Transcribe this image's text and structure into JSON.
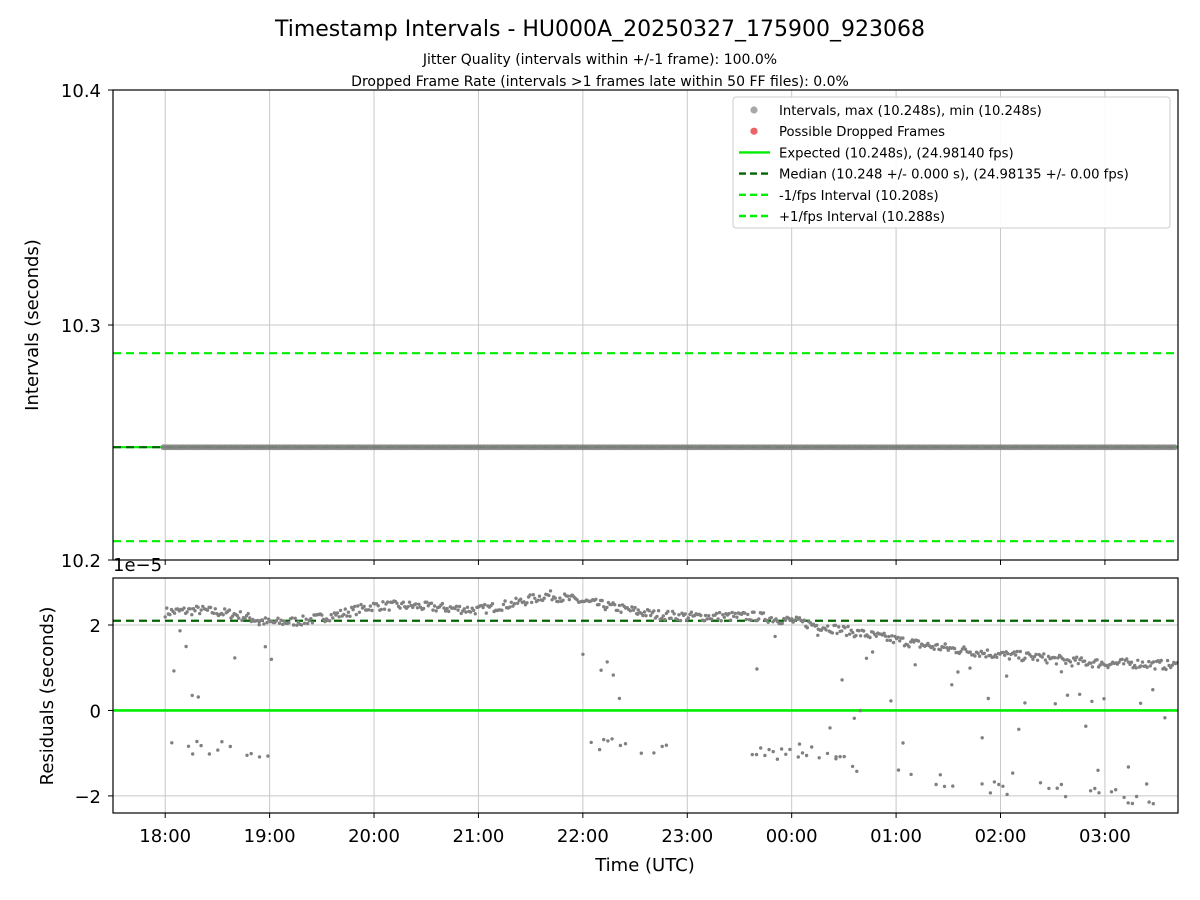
{
  "title": "Timestamp Intervals - HU000A_20250327_175900_923068",
  "subtitle_jitter": "Jitter Quality (intervals within +/-1 frame): 100.0%",
  "subtitle_dropped": "Dropped Frame Rate (intervals >1 frames late within 50 FF files): 0.0%",
  "xlabel": "Time (UTC)",
  "colors": {
    "intervals": "#808080",
    "dropped": "#e8474c",
    "expected": "#00ee00",
    "median": "#006400",
    "jitter_band": "#00ee00",
    "grid": "#c8c8c8"
  },
  "chart_data": [
    {
      "type": "scatter",
      "name": "intervals-panel",
      "ylabel": "Intervals (seconds)",
      "ylim": [
        10.2,
        10.4
      ],
      "yticks": [
        "10.2",
        "10.3",
        "10.4"
      ],
      "ytick_values": [
        10.2,
        10.3,
        10.4
      ],
      "grid": true,
      "legend_position": "upper right",
      "legend": [
        {
          "label": "Intervals, max (10.248s), min (10.248s)",
          "kind": "marker",
          "color": "#a8a8a8"
        },
        {
          "label": "Possible Dropped Frames",
          "kind": "marker",
          "color": "#e8474c"
        },
        {
          "label": "Expected (10.248s), (24.98140 fps)",
          "kind": "solid",
          "color": "#00ee00"
        },
        {
          "label": "Median (10.248 +/- 0.000 s), (24.98135 +/- 0.00 fps)",
          "kind": "dashed",
          "color": "#006400"
        },
        {
          "label": "-1/fps Interval (10.208s)",
          "kind": "dashed",
          "color": "#00ee00"
        },
        {
          "label": "+1/fps Interval (10.288s)",
          "kind": "dashed",
          "color": "#00ee00"
        }
      ],
      "expected": 10.248,
      "median": 10.248,
      "lower_bound": 10.208,
      "upper_bound": 10.288,
      "series": [
        {
          "name": "Intervals",
          "x_start": "17:59",
          "x_end": "03:42",
          "y": 10.248
        }
      ]
    },
    {
      "type": "scatter",
      "name": "residuals-panel",
      "ylabel": "Residuals (seconds)",
      "offset_label": "1e−5",
      "ylim": [
        -2.4,
        3.1
      ],
      "yticks": [
        "−2",
        "0",
        "2"
      ],
      "ytick_values": [
        -2,
        0,
        2
      ],
      "y_unit_scale": "1e-5",
      "grid": true,
      "expected_line": 0,
      "median_line": 2.1,
      "xlim": [
        "17:30",
        "03:42"
      ],
      "xticks": [
        "18:00",
        "19:00",
        "20:00",
        "21:00",
        "22:00",
        "23:00",
        "00:00",
        "01:00",
        "02:00",
        "03:00"
      ],
      "series": [
        {
          "name": "main-residual-trend",
          "points": [
            [
              "18:00",
              2.3
            ],
            [
              "18:20",
              2.35
            ],
            [
              "18:40",
              2.25
            ],
            [
              "19:00",
              2.05
            ],
            [
              "19:20",
              2.1
            ],
            [
              "19:40",
              2.25
            ],
            [
              "20:00",
              2.45
            ],
            [
              "20:20",
              2.45
            ],
            [
              "20:40",
              2.4
            ],
            [
              "21:00",
              2.35
            ],
            [
              "21:20",
              2.5
            ],
            [
              "21:40",
              2.7
            ],
            [
              "22:00",
              2.55
            ],
            [
              "22:20",
              2.4
            ],
            [
              "22:40",
              2.25
            ],
            [
              "23:00",
              2.2
            ],
            [
              "23:20",
              2.2
            ],
            [
              "23:40",
              2.2
            ],
            [
              "00:00",
              2.1
            ],
            [
              "00:20",
              1.95
            ],
            [
              "00:40",
              1.8
            ],
            [
              "01:00",
              1.65
            ],
            [
              "01:20",
              1.5
            ],
            [
              "01:40",
              1.4
            ],
            [
              "02:00",
              1.3
            ],
            [
              "02:20",
              1.25
            ],
            [
              "02:40",
              1.15
            ],
            [
              "03:00",
              1.1
            ],
            [
              "03:20",
              1.1
            ],
            [
              "03:40",
              1.05
            ]
          ]
        },
        {
          "name": "lower-residual-trend",
          "points": [
            [
              "17:59",
              -0.8
            ],
            [
              "18:10",
              -0.9
            ],
            [
              "18:40",
              -0.9
            ],
            [
              "18:55",
              -1.1
            ],
            [
              "19:00",
              -1.2
            ],
            [
              "22:00",
              -0.7
            ],
            [
              "22:20",
              -0.8
            ],
            [
              "22:40",
              -0.9
            ],
            [
              "22:50",
              -0.95
            ],
            [
              "23:10",
              -1.0
            ],
            [
              "23:40",
              -1.0
            ],
            [
              "23:50",
              -1.05
            ],
            [
              "00:00",
              -1.05
            ],
            [
              "00:20",
              -1.15
            ],
            [
              "00:40",
              -1.3
            ],
            [
              "01:00",
              -1.5
            ],
            [
              "01:20",
              -1.6
            ],
            [
              "01:40",
              -1.75
            ],
            [
              "02:00",
              -1.8
            ],
            [
              "02:20",
              -1.85
            ],
            [
              "02:40",
              -1.9
            ],
            [
              "03:00",
              -1.95
            ],
            [
              "03:30",
              -2.05
            ]
          ]
        }
      ]
    }
  ]
}
